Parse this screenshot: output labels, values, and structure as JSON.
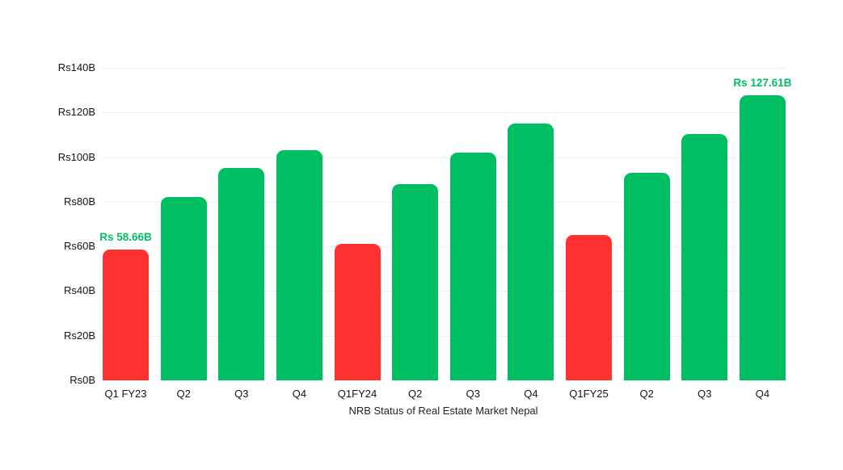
{
  "chart_data": {
    "type": "bar",
    "caption": "NRB Status of Real Estate Market Nepal",
    "xlabel": "NRB Status of Real Estate Market Nepal",
    "ylabel": "",
    "title": "",
    "legend": "none",
    "grid": true,
    "ylim": [
      0,
      140
    ],
    "y_tick_step": 20,
    "y_ticks": [
      "Rs0B",
      "Rs20B",
      "Rs40B",
      "Rs60B",
      "Rs80B",
      "Rs100B",
      "Rs120B",
      "Rs140B"
    ],
    "categories": [
      "Q1 FY23",
      "Q2",
      "Q3",
      "Q4",
      "Q1FY24",
      "Q2",
      "Q3",
      "Q4",
      "Q1FY25",
      "Q2",
      "Q3",
      "Q4"
    ],
    "values": [
      58.66,
      82,
      95,
      103,
      61,
      88,
      102,
      115,
      65,
      93,
      110.5,
      127.61
    ],
    "bar_colors": [
      "#FF3131",
      "#00BF63",
      "#00BF63",
      "#00BF63",
      "#FF3131",
      "#00BF63",
      "#00BF63",
      "#00BF63",
      "#FF3131",
      "#00BF63",
      "#00BF63",
      "#00BF63"
    ],
    "data_labels": [
      {
        "index": 0,
        "text": "Rs 58.66B"
      },
      {
        "index": 11,
        "text": "Rs 127.61B"
      }
    ],
    "colors": {
      "q1_bar": "#FF3131",
      "growth_bar": "#00BF63",
      "data_label_text": "#00BF63",
      "gridline": "#F0F0F1",
      "axis_text": "#141414",
      "caption_text": "#222222",
      "background": "#FFFFFF"
    }
  }
}
